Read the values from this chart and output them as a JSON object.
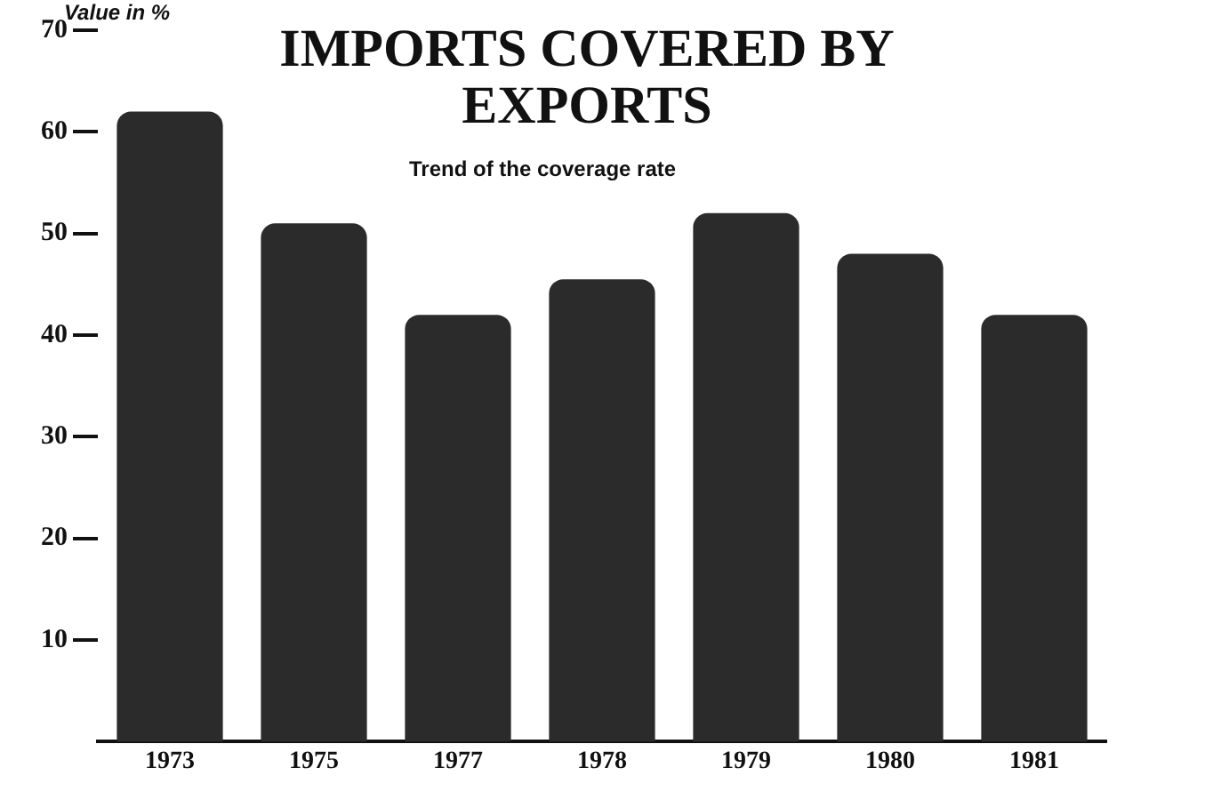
{
  "chart_data": {
    "type": "bar",
    "title": "IMPORTS COVERED BY EXPORTS",
    "subtitle": "Trend of the coverage rate",
    "ylabel": "Value in %",
    "categories": [
      "1973",
      "1975",
      "1977",
      "1978",
      "1979",
      "1980",
      "1981"
    ],
    "values": [
      62,
      51,
      42,
      45.5,
      52,
      48,
      42
    ],
    "color": "#2b2b2b",
    "ylim": [
      0,
      70
    ],
    "yticks": [
      10,
      20,
      30,
      40,
      50,
      60,
      70
    ],
    "grid": false,
    "legend": false
  }
}
